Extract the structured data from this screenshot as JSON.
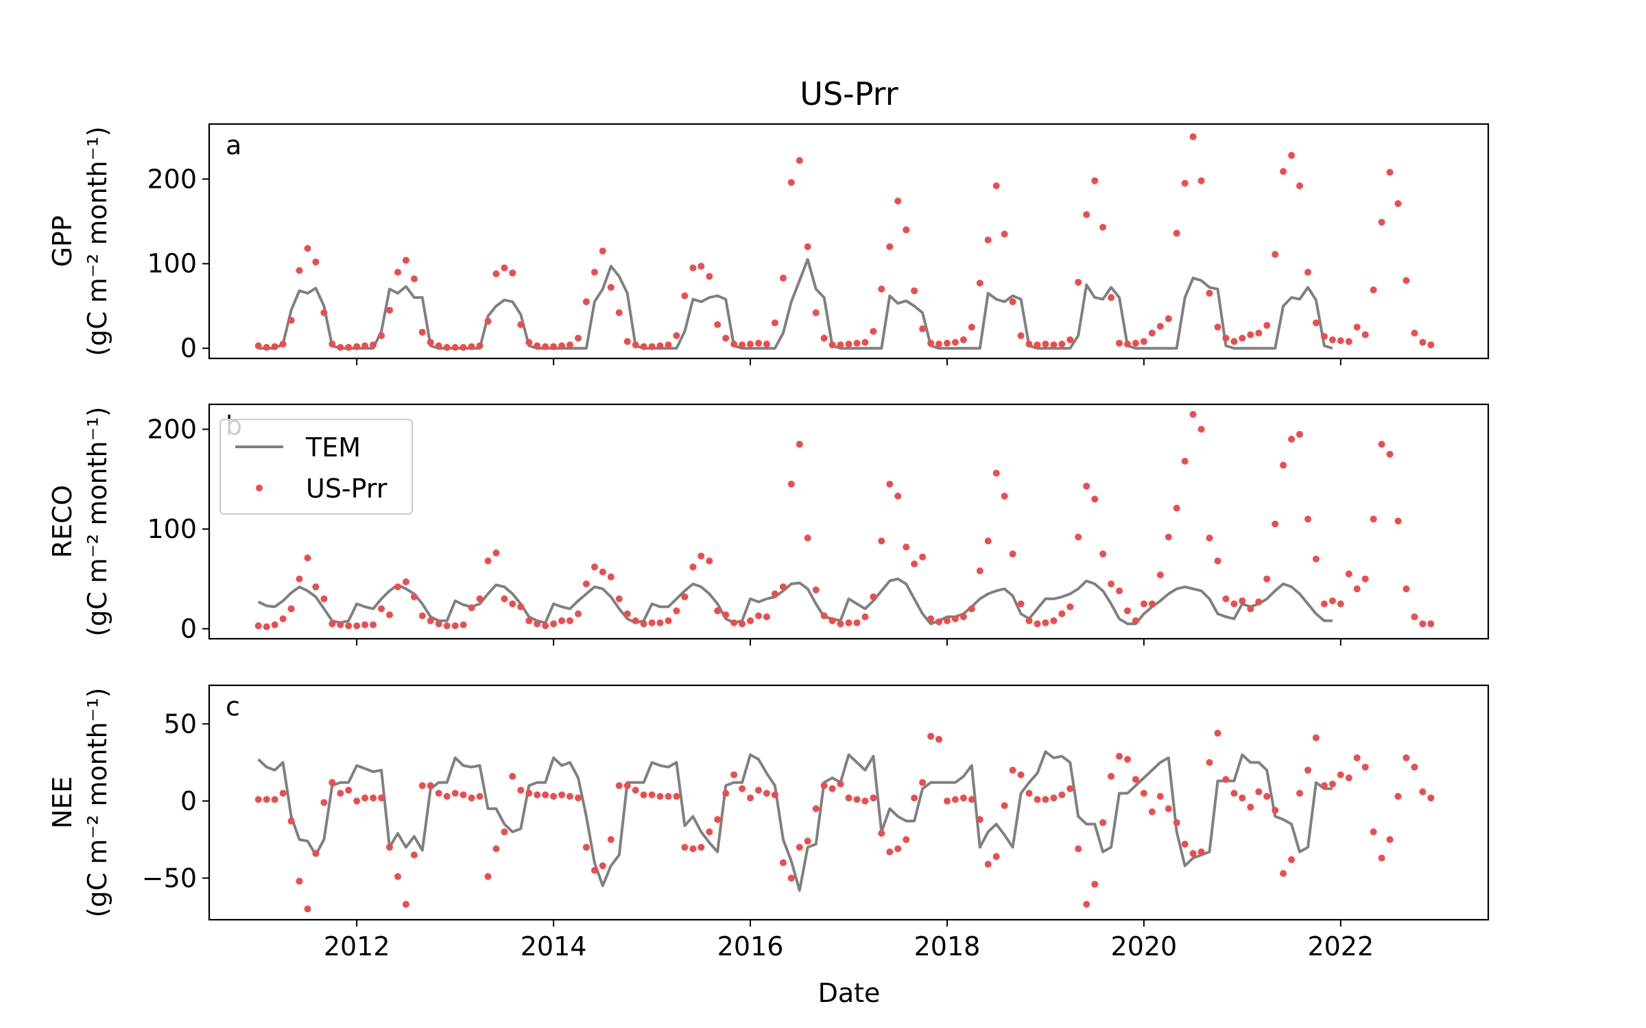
{
  "title": "US-Prr",
  "colors": {
    "model": "#808080",
    "obs": "#f04b4b"
  },
  "legend": {
    "placement": "upper-left",
    "panel": 1,
    "model_label": "TEM",
    "obs_label": "US-Prr"
  },
  "chart_data": [
    {
      "type": "line",
      "panel_label": "a",
      "ylabel_name": "GPP",
      "ylabel_units": "(gC m⁻² month⁻¹)",
      "xlabel": "",
      "xlim": [
        "2010-07",
        "2023-07"
      ],
      "ylim": [
        -12,
        265
      ],
      "yticks": [
        0,
        100,
        200
      ],
      "xticks": [
        "2012",
        "2014",
        "2016",
        "2018",
        "2020",
        "2022"
      ],
      "grid": false,
      "series": [
        {
          "name": "TEM",
          "kind": "line",
          "start": "2011-01",
          "values": [
            0,
            0,
            0,
            5,
            45,
            68,
            65,
            71,
            50,
            3,
            0,
            0,
            0,
            0,
            0,
            20,
            70,
            65,
            73,
            60,
            60,
            3,
            0,
            0,
            0,
            0,
            0,
            0,
            38,
            50,
            57,
            55,
            40,
            3,
            0,
            0,
            0,
            0,
            0,
            0,
            0,
            55,
            70,
            97,
            85,
            65,
            3,
            0,
            0,
            0,
            0,
            0,
            20,
            58,
            55,
            60,
            62,
            58,
            3,
            0,
            0,
            0,
            0,
            0,
            18,
            55,
            80,
            105,
            70,
            60,
            3,
            0,
            0,
            0,
            0,
            0,
            0,
            62,
            53,
            56,
            50,
            42,
            3,
            0,
            0,
            0,
            0,
            0,
            0,
            65,
            58,
            55,
            62,
            58,
            3,
            0,
            0,
            0,
            0,
            0,
            15,
            75,
            60,
            58,
            72,
            60,
            3,
            0,
            0,
            0,
            0,
            0,
            0,
            60,
            83,
            80,
            72,
            70,
            3,
            0,
            0,
            0,
            0,
            0,
            0,
            50,
            60,
            58,
            72,
            57,
            3,
            0
          ]
        },
        {
          "name": "US-Prr",
          "kind": "scatter",
          "start": "2011-01",
          "values": [
            3,
            1,
            2,
            5,
            33,
            92,
            118,
            102,
            42,
            5,
            1,
            1,
            2,
            3,
            4,
            15,
            45,
            90,
            104,
            82,
            19,
            7,
            3,
            1,
            1,
            1,
            2,
            3,
            32,
            88,
            95,
            89,
            28,
            7,
            3,
            2,
            2,
            3,
            4,
            12,
            55,
            90,
            115,
            72,
            42,
            8,
            4,
            2,
            2,
            3,
            4,
            15,
            62,
            95,
            97,
            85,
            28,
            12,
            5,
            4,
            5,
            6,
            5,
            30,
            83,
            196,
            222,
            120,
            42,
            12,
            4,
            4,
            5,
            6,
            7,
            20,
            70,
            120,
            174,
            140,
            68,
            23,
            6,
            5,
            6,
            7,
            10,
            25,
            77,
            128,
            192,
            135,
            55,
            15,
            5,
            4,
            5,
            4,
            5,
            10,
            78,
            158,
            198,
            143,
            60,
            6,
            5,
            6,
            8,
            18,
            26,
            35,
            136,
            195,
            250,
            198,
            65,
            25,
            12,
            8,
            12,
            16,
            18,
            27,
            111,
            209,
            228,
            192,
            90,
            30,
            14,
            10,
            9,
            8,
            25,
            16,
            69,
            149,
            208,
            171,
            80,
            18,
            7,
            4
          ]
        }
      ]
    },
    {
      "type": "line",
      "panel_label": "b",
      "ylabel_name": "RECO",
      "ylabel_units": "(gC m⁻² month⁻¹)",
      "xlabel": "",
      "xlim": [
        "2010-07",
        "2023-07"
      ],
      "ylim": [
        -10,
        225
      ],
      "yticks": [
        0,
        100,
        200
      ],
      "xticks": [
        "2012",
        "2014",
        "2016",
        "2018",
        "2020",
        "2022"
      ],
      "grid": false,
      "series": [
        {
          "name": "TEM",
          "kind": "line",
          "start": "2011-01",
          "values": [
            27,
            23,
            22,
            28,
            36,
            42,
            38,
            32,
            20,
            8,
            6,
            8,
            25,
            22,
            20,
            30,
            38,
            44,
            40,
            35,
            25,
            12,
            8,
            8,
            28,
            24,
            22,
            25,
            35,
            44,
            42,
            35,
            25,
            12,
            8,
            6,
            25,
            22,
            20,
            28,
            35,
            42,
            40,
            32,
            20,
            10,
            6,
            8,
            25,
            22,
            22,
            30,
            38,
            45,
            42,
            35,
            25,
            10,
            6,
            8,
            30,
            27,
            30,
            32,
            38,
            45,
            46,
            40,
            25,
            12,
            10,
            8,
            30,
            25,
            20,
            28,
            38,
            48,
            50,
            45,
            30,
            15,
            5,
            8,
            12,
            12,
            15,
            22,
            30,
            35,
            38,
            40,
            33,
            15,
            10,
            20,
            30,
            30,
            32,
            35,
            40,
            48,
            45,
            38,
            25,
            10,
            5,
            5,
            15,
            22,
            28,
            35,
            40,
            42,
            40,
            38,
            30,
            15,
            12,
            10,
            25,
            22,
            25,
            30,
            38,
            45,
            42,
            35,
            25,
            15,
            8,
            8
          ]
        },
        {
          "name": "US-Prr",
          "kind": "scatter",
          "start": "2011-01",
          "values": [
            3,
            2,
            4,
            10,
            20,
            50,
            71,
            42,
            30,
            5,
            4,
            3,
            3,
            4,
            4,
            20,
            14,
            42,
            47,
            32,
            13,
            8,
            5,
            3,
            3,
            4,
            21,
            30,
            68,
            76,
            30,
            25,
            22,
            8,
            5,
            3,
            5,
            8,
            8,
            15,
            45,
            62,
            57,
            52,
            30,
            15,
            8,
            5,
            6,
            6,
            8,
            18,
            32,
            62,
            73,
            68,
            18,
            14,
            6,
            5,
            8,
            13,
            12,
            35,
            42,
            145,
            185,
            91,
            39,
            13,
            8,
            5,
            6,
            6,
            12,
            32,
            88,
            145,
            133,
            82,
            65,
            72,
            10,
            7,
            8,
            10,
            12,
            20,
            58,
            88,
            156,
            133,
            75,
            25,
            8,
            5,
            6,
            8,
            15,
            22,
            92,
            143,
            130,
            75,
            45,
            38,
            18,
            8,
            25,
            25,
            54,
            92,
            121,
            168,
            215,
            200,
            91,
            68,
            30,
            25,
            28,
            20,
            27,
            50,
            105,
            164,
            190,
            195,
            110,
            70,
            25,
            28,
            25,
            55,
            40,
            50,
            110,
            185,
            175,
            108,
            40,
            12,
            5,
            5
          ]
        }
      ]
    },
    {
      "type": "line",
      "panel_label": "c",
      "ylabel_name": "NEE",
      "ylabel_units": "(gC m⁻² month⁻¹)",
      "xlabel": "Date",
      "xlim": [
        "2010-07",
        "2023-07"
      ],
      "ylim": [
        -77,
        75
      ],
      "yticks": [
        -50,
        0,
        50
      ],
      "xticks": [
        "2012",
        "2014",
        "2016",
        "2018",
        "2020",
        "2022"
      ],
      "grid": false,
      "series": [
        {
          "name": "TEM",
          "kind": "line",
          "start": "2011-01",
          "values": [
            27,
            22,
            20,
            25,
            -10,
            -25,
            -26,
            -35,
            -25,
            10,
            12,
            12,
            23,
            21,
            19,
            20,
            -30,
            -21,
            -30,
            -23,
            -32,
            8,
            12,
            12,
            28,
            23,
            22,
            23,
            -5,
            -5,
            -15,
            -20,
            -18,
            10,
            12,
            12,
            28,
            23,
            25,
            15,
            -10,
            -40,
            -55,
            -42,
            -35,
            12,
            12,
            12,
            25,
            23,
            22,
            25,
            -16,
            -10,
            -20,
            -27,
            -33,
            10,
            12,
            12,
            30,
            27,
            18,
            10,
            -25,
            -39,
            -58,
            -30,
            -28,
            12,
            15,
            12,
            30,
            25,
            20,
            29,
            -20,
            -5,
            -10,
            -13,
            -13,
            8,
            12,
            12,
            12,
            12,
            16,
            23,
            -30,
            -20,
            -15,
            -22,
            -30,
            5,
            12,
            18,
            32,
            28,
            29,
            25,
            -10,
            -15,
            -15,
            -33,
            -30,
            5,
            5,
            10,
            15,
            20,
            25,
            28,
            -20,
            -42,
            -37,
            -35,
            -33,
            13,
            13,
            13,
            30,
            25,
            25,
            20,
            -10,
            -12,
            -15,
            -33,
            -30,
            12,
            8,
            8
          ]
        },
        {
          "name": "US-Prr",
          "kind": "scatter",
          "start": "2011-01",
          "values": [
            1,
            1,
            1,
            5,
            -13,
            -52,
            -70,
            -34,
            -1,
            12,
            5,
            7,
            0,
            2,
            2,
            2,
            -30,
            -49,
            -67,
            -35,
            10,
            10,
            5,
            3,
            5,
            4,
            2,
            3,
            -49,
            -31,
            -20,
            16,
            7,
            5,
            4,
            4,
            3,
            4,
            3,
            2,
            -30,
            -45,
            -42,
            -25,
            10,
            10,
            7,
            4,
            4,
            3,
            3,
            3,
            -30,
            -31,
            -30,
            -20,
            -12,
            5,
            17,
            8,
            2,
            7,
            5,
            4,
            -40,
            -50,
            -30,
            -26,
            -5,
            10,
            8,
            11,
            2,
            1,
            0,
            2,
            -21,
            -33,
            -31,
            -25,
            2,
            12,
            42,
            40,
            0,
            1,
            2,
            1,
            -12,
            -41,
            -36,
            -3,
            20,
            17,
            5,
            1,
            1,
            2,
            4,
            8,
            -31,
            -67,
            -54,
            -14,
            16,
            29,
            27,
            14,
            5,
            -7,
            3,
            -5,
            -14,
            -28,
            -34,
            -33,
            25,
            44,
            14,
            5,
            2,
            -4,
            6,
            3,
            -6,
            -47,
            -38,
            5,
            20,
            41,
            10,
            11,
            17,
            15,
            28,
            22,
            -20,
            -37,
            -25,
            3,
            28,
            22,
            6,
            2
          ]
        }
      ]
    }
  ]
}
